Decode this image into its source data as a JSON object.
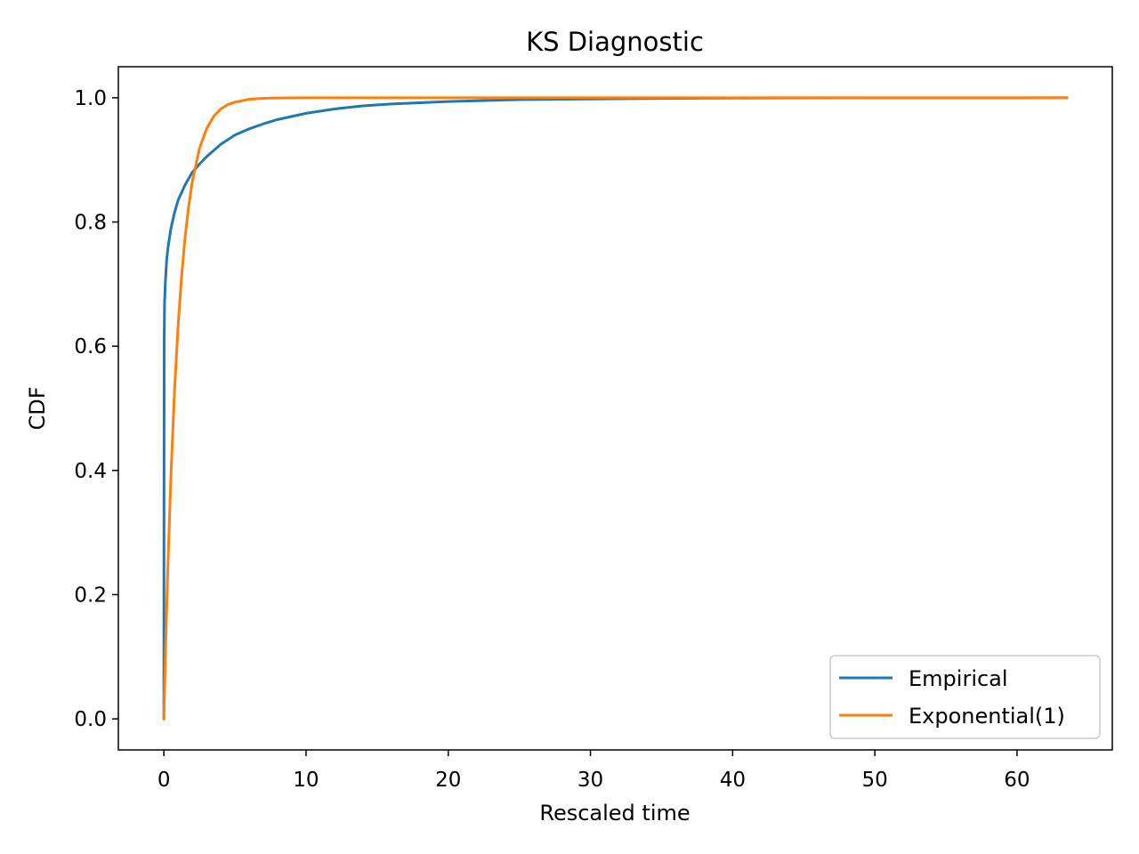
{
  "chart_data": {
    "type": "line",
    "title": "KS Diagnostic",
    "xlabel": "Rescaled time",
    "ylabel": "CDF",
    "xlim": [
      -3.2,
      66.7
    ],
    "ylim": [
      -0.05,
      1.05
    ],
    "xticks": [
      0,
      10,
      20,
      30,
      40,
      50,
      60
    ],
    "yticks": [
      0.0,
      0.2,
      0.4,
      0.6,
      0.8,
      1.0
    ],
    "xtick_labels": [
      "0",
      "10",
      "20",
      "30",
      "40",
      "50",
      "60"
    ],
    "ytick_labels": [
      "0.0",
      "0.2",
      "0.4",
      "0.6",
      "0.8",
      "1.0"
    ],
    "grid": false,
    "legend_position": "bottom-right",
    "series": [
      {
        "name": "Empirical",
        "color": "#1f77b4",
        "x": [
          0,
          0.02,
          0.05,
          0.1,
          0.2,
          0.3,
          0.5,
          0.75,
          1.0,
          1.5,
          2.0,
          2.5,
          3.0,
          4.0,
          5.0,
          6.0,
          7.0,
          8.0,
          10.0,
          12.0,
          14.0,
          16.0,
          18.0,
          20.0,
          25.0,
          30.0,
          35.0,
          40.0,
          50.0,
          63.5
        ],
        "y": [
          0.0,
          0.6,
          0.67,
          0.7,
          0.74,
          0.76,
          0.79,
          0.815,
          0.835,
          0.86,
          0.88,
          0.893,
          0.905,
          0.925,
          0.94,
          0.95,
          0.958,
          0.965,
          0.975,
          0.982,
          0.987,
          0.99,
          0.992,
          0.994,
          0.997,
          0.998,
          0.999,
          0.9995,
          0.9998,
          1.0
        ]
      },
      {
        "name": "Exponential(1)",
        "color": "#ff7f0e",
        "x": [
          0,
          0.1,
          0.25,
          0.5,
          0.75,
          1.0,
          1.25,
          1.5,
          1.75,
          2.0,
          2.5,
          3.0,
          3.5,
          4.0,
          4.5,
          5.0,
          6.0,
          7.0,
          8.0,
          10.0,
          15.0,
          20.0,
          30.0,
          40.0,
          50.0,
          63.5
        ],
        "y": [
          0.0,
          0.095,
          0.221,
          0.393,
          0.528,
          0.632,
          0.713,
          0.777,
          0.826,
          0.865,
          0.918,
          0.95,
          0.97,
          0.982,
          0.989,
          0.993,
          0.9975,
          0.9991,
          0.9997,
          1.0,
          1.0,
          1.0,
          1.0,
          1.0,
          1.0,
          1.0
        ]
      }
    ]
  }
}
